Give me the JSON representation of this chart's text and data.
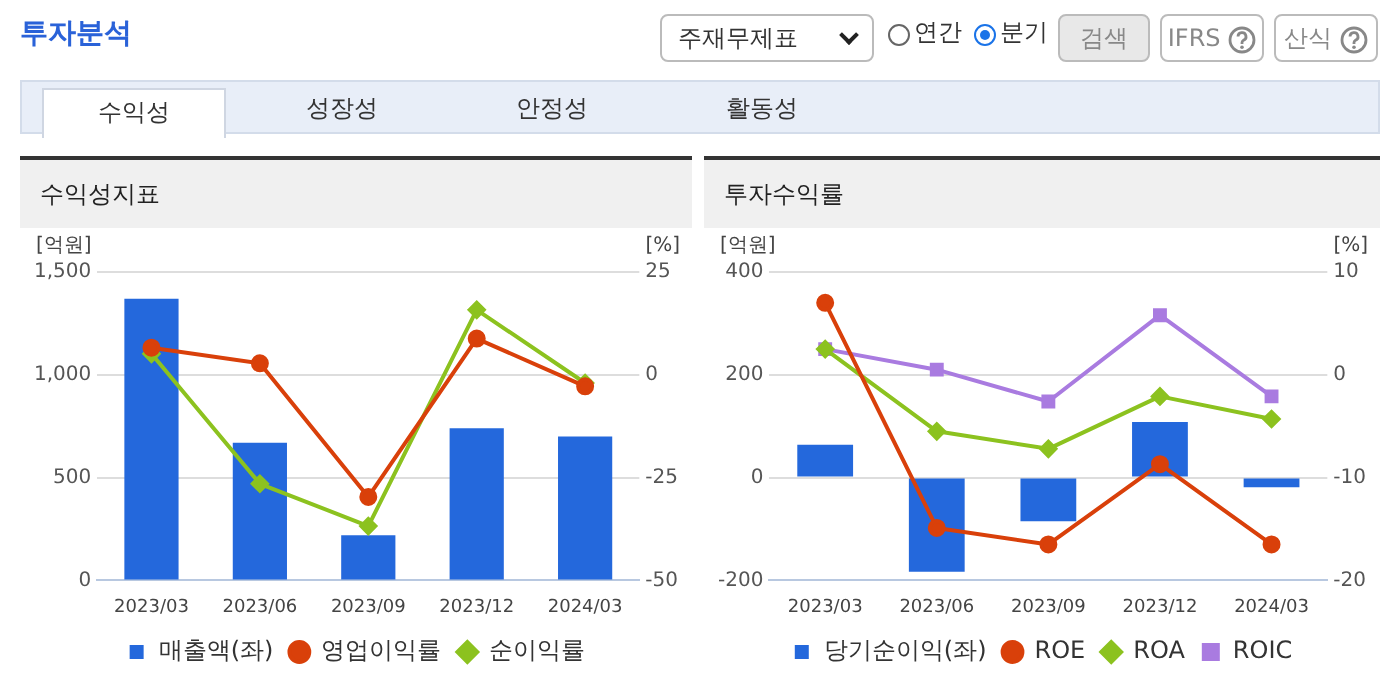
{
  "chart_data": [
    {
      "type": "bar",
      "title": "수익성지표",
      "annotations": [
        "투자분석",
        "주재무제표",
        "연간",
        "분기",
        "검색",
        "IFRS",
        "산식",
        "수익성",
        "성장성",
        "안정성",
        "활동성"
      ],
      "categories": [
        "2023/03",
        "2023/06",
        "2023/09",
        "2023/12",
        "2024/03"
      ],
      "ylabel": "[억원]",
      "y2label": "[%]",
      "series": [
        {
          "name": "매출액(좌)",
          "color": "#2468dc",
          "values": [
            1370,
            670,
            220,
            740,
            700
          ]
        },
        {
          "name": "영업이익률",
          "type": "line",
          "axis": "y2",
          "color": "#d9400a",
          "marker": "circle",
          "values": [
            6.6,
            2.8,
            -29.7,
            8.8,
            -2.8
          ]
        },
        {
          "name": "순이익률",
          "type": "line",
          "axis": "y2",
          "color": "#8cc21f",
          "marker": "diamond",
          "values": [
            5.1,
            -26.5,
            -36.8,
            15.8,
            -2.0
          ]
        }
      ],
      "ylim": [
        0,
        1500
      ],
      "yticks": [
        0,
        500,
        {
          "value": 1000,
          "label": "1,000"
        },
        {
          "value": 1500,
          "label": "1,500"
        }
      ],
      "y2lim": [
        -50,
        25
      ],
      "y2ticks": [
        -50,
        -25,
        0,
        25
      ],
      "grid": "y",
      "legend": "bottom"
    },
    {
      "type": "bar",
      "title": "투자수익률",
      "categories": [
        "2023/03",
        "2023/06",
        "2023/09",
        "2023/12",
        "2024/03"
      ],
      "ylabel": "[억원]",
      "y2label": "[%]",
      "series": [
        {
          "name": "당기순이익(좌)",
          "color": "#2468dc",
          "values": [
            64,
            -183,
            -85,
            108,
            -19
          ]
        },
        {
          "name": "ROE",
          "type": "line",
          "axis": "y2",
          "color": "#d9400a",
          "marker": "circle",
          "values": [
            7.0,
            -14.9,
            -16.5,
            -8.7,
            -16.5
          ]
        },
        {
          "name": "ROA",
          "type": "line",
          "axis": "y2",
          "color": "#8cc21f",
          "marker": "diamond",
          "values": [
            2.5,
            -5.5,
            -7.2,
            -2.1,
            -4.3
          ]
        },
        {
          "name": "ROIC",
          "type": "line",
          "axis": "y2",
          "color": "#a97be0",
          "marker": "square",
          "values": [
            2.5,
            0.5,
            -2.6,
            5.8,
            -2.1
          ]
        }
      ],
      "ylim": [
        -200,
        400
      ],
      "yticks": [
        -200,
        0,
        200,
        400
      ],
      "y2lim": [
        -20,
        10
      ],
      "y2ticks": [
        -20,
        -10,
        0,
        10
      ],
      "grid": "y",
      "legend": "bottom"
    }
  ]
}
